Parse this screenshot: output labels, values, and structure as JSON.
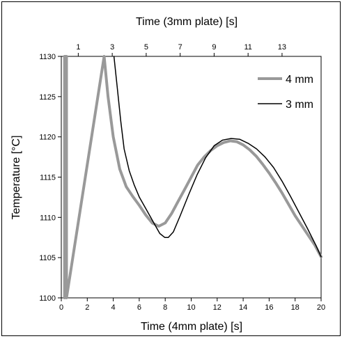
{
  "chart_data": {
    "type": "line",
    "title": "",
    "xlabel": "Time (4mm plate) [s]",
    "x2label": "Time (3mm plate) [s]",
    "ylabel": "Temperature [°C]",
    "xlim": [
      0,
      20
    ],
    "x2lim": [
      0,
      15.3
    ],
    "ylim": [
      1100,
      1130
    ],
    "x_ticks": [
      "0",
      "2",
      "4",
      "6",
      "8",
      "10",
      "12",
      "14",
      "16",
      "18",
      "20"
    ],
    "x2_ticks": [
      "1",
      "3",
      "5",
      "7",
      "9",
      "11",
      "13"
    ],
    "y_ticks": [
      "1100",
      "1105",
      "1110",
      "1115",
      "1120",
      "1125",
      "1130"
    ],
    "grid": false,
    "legend_position": "top-right",
    "series": [
      {
        "name": "4 mm",
        "color": "#999999",
        "axis": "bottom",
        "x": [
          0.25,
          0.25,
          0.3,
          0.35,
          0.4,
          0.4,
          3.3,
          3.6,
          4.0,
          4.5,
          5.0,
          5.5,
          6.0,
          6.5,
          7.0,
          7.5,
          8.0,
          8.5,
          9.0,
          9.5,
          10.0,
          10.5,
          11.0,
          11.5,
          12.0,
          12.5,
          13.0,
          13.5,
          14.0,
          14.5,
          15.0,
          15.5,
          16.0,
          16.5,
          17.0,
          17.5,
          18.0,
          18.5,
          19.0,
          19.5,
          20.0
        ],
        "y": [
          1100,
          1130,
          1130,
          1130,
          1130,
          1100,
          1130,
          1125,
          1120,
          1116,
          1113.8,
          1112.6,
          1111.5,
          1110.3,
          1109.3,
          1108.9,
          1109.3,
          1110.5,
          1112.0,
          1113.5,
          1115.0,
          1116.5,
          1117.5,
          1118.3,
          1118.9,
          1119.3,
          1119.5,
          1119.4,
          1119.0,
          1118.4,
          1117.6,
          1116.6,
          1115.5,
          1114.3,
          1113.0,
          1111.6,
          1110.2,
          1109.0,
          1107.8,
          1106.6,
          1105.1
        ]
      },
      {
        "name": "3 mm",
        "color": "#000000",
        "axis": "top",
        "x": [
          3.1,
          3.3,
          3.5,
          3.7,
          4.0,
          4.3,
          4.6,
          5.0,
          5.4,
          5.8,
          6.1,
          6.3,
          6.6,
          7.0,
          7.5,
          8.0,
          8.5,
          9.0,
          9.5,
          10.0,
          10.5,
          11.0,
          11.5,
          12.0,
          12.5,
          13.0,
          13.5,
          14.0,
          14.5,
          15.0,
          15.3
        ],
        "y": [
          1130,
          1126,
          1122,
          1118.5,
          1115.8,
          1114.0,
          1112.5,
          1111.0,
          1109.5,
          1108.0,
          1107.5,
          1107.5,
          1108.2,
          1110.2,
          1112.8,
          1115.3,
          1117.4,
          1118.9,
          1119.6,
          1119.8,
          1119.7,
          1119.2,
          1118.5,
          1117.5,
          1116.2,
          1114.5,
          1112.6,
          1110.6,
          1108.6,
          1106.5,
          1105.1
        ]
      }
    ]
  }
}
